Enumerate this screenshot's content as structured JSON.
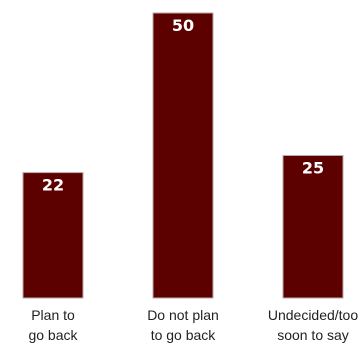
{
  "chart_data": {
    "type": "bar",
    "categories": [
      [
        "Plan to",
        "go back"
      ],
      [
        "Do not plan",
        "to go back"
      ],
      [
        "Undecided/too",
        "soon to say"
      ]
    ],
    "values": [
      22,
      50,
      25
    ],
    "ylim": [
      0,
      50
    ],
    "grid": false,
    "legend": "none",
    "bar_color": "#5c0000",
    "bar_edge_color": "#b8a8a8",
    "label_color": "#ffffff"
  }
}
